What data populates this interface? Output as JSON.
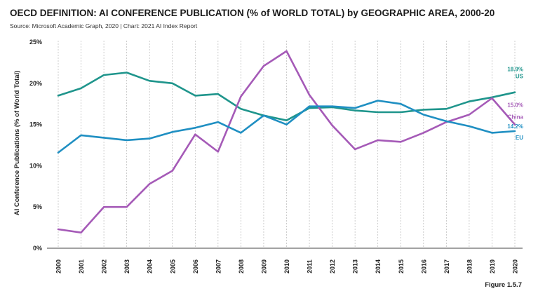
{
  "title": "OECD DEFINITION: AI CONFERENCE PUBLICATION (% of WORLD TOTAL) by GEOGRAPHIC AREA, 2000-20",
  "subtitle": "Source: Microsoft Academic Graph, 2020 | Chart: 2021 AI Index Report",
  "figure_label": "Figure 1.5.7",
  "chart_data": {
    "type": "line",
    "ylabel": "AI Conference Publications (% of World Total)",
    "xlabel": "",
    "ylim": [
      0,
      25
    ],
    "yticks": [
      0,
      5,
      10,
      15,
      20,
      25
    ],
    "ytick_labels": [
      "0%",
      "5%",
      "10%",
      "15%",
      "20%",
      "25%"
    ],
    "x": [
      "2000",
      "2001",
      "2002",
      "2003",
      "2004",
      "2005",
      "2006",
      "2007",
      "2008",
      "2009",
      "2010",
      "2011",
      "2012",
      "2013",
      "2014",
      "2015",
      "2016",
      "2017",
      "2018",
      "2019",
      "2020"
    ],
    "grid": "vertical dashed",
    "series": [
      {
        "name": "US",
        "color": "#1f958c",
        "end_label": "18.9%",
        "values": [
          18.5,
          19.4,
          21.0,
          21.3,
          20.3,
          20.0,
          18.5,
          18.7,
          16.9,
          16.1,
          15.5,
          17.0,
          17.1,
          16.7,
          16.5,
          16.5,
          16.8,
          16.9,
          17.8,
          18.3,
          18.9
        ]
      },
      {
        "name": "China",
        "color": "#a55ab7",
        "end_label": "15.0%",
        "values": [
          2.3,
          1.9,
          5.0,
          5.0,
          7.8,
          9.4,
          13.8,
          11.7,
          18.4,
          22.1,
          23.9,
          18.6,
          14.9,
          12.0,
          13.1,
          12.9,
          14.0,
          15.3,
          16.2,
          18.2,
          15.0
        ]
      },
      {
        "name": "EU",
        "color": "#1f8fc2",
        "end_label": "14.2%",
        "values": [
          11.6,
          13.7,
          13.4,
          13.1,
          13.3,
          14.1,
          14.6,
          15.3,
          14.0,
          16.1,
          15.0,
          17.2,
          17.2,
          17.0,
          17.9,
          17.5,
          16.2,
          15.4,
          14.8,
          14.0,
          14.2
        ]
      }
    ]
  }
}
